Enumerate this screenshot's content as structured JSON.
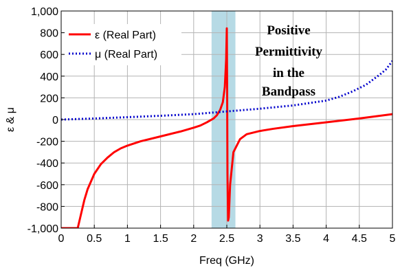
{
  "chart_data": {
    "type": "line",
    "title": "",
    "xlabel": "Freq (GHz)",
    "ylabel": "ε & μ",
    "xlim": [
      0,
      5
    ],
    "ylim": [
      -1000,
      1000
    ],
    "xticks": [
      0,
      0.5,
      1,
      1.5,
      2,
      2.5,
      3,
      3.5,
      4,
      4.5,
      5
    ],
    "xtick_labels": [
      "0",
      "0.5",
      "1",
      "1.5",
      "2",
      "2.5",
      "3",
      "3.5",
      "4",
      "4.5",
      "5"
    ],
    "yticks": [
      -1000,
      -800,
      -600,
      -400,
      -200,
      0,
      200,
      400,
      600,
      800,
      1000
    ],
    "ytick_labels": [
      "-1,000",
      "-800",
      "-600",
      "-400",
      "-200",
      "0",
      "200",
      "400",
      "600",
      "800",
      "1,000"
    ],
    "grid": true,
    "legend_position": "top-left",
    "highlight_band": {
      "x": [
        2.27,
        2.63
      ],
      "color": "#a9d4e0"
    },
    "annotation": [
      "Positive",
      "Permittivity",
      "in the",
      "Bandpass"
    ],
    "series": [
      {
        "name": "ε (Real Part)",
        "color": "#ff0000",
        "style": "solid",
        "points": [
          [
            0.0,
            -1000
          ],
          [
            0.0,
            -1000
          ],
          [
            0.25,
            -1000
          ],
          [
            0.3,
            -870
          ],
          [
            0.35,
            -740
          ],
          [
            0.4,
            -640
          ],
          [
            0.5,
            -500
          ],
          [
            0.6,
            -410
          ],
          [
            0.7,
            -350
          ],
          [
            0.8,
            -300
          ],
          [
            0.9,
            -265
          ],
          [
            1.0,
            -240
          ],
          [
            1.2,
            -200
          ],
          [
            1.4,
            -170
          ],
          [
            1.6,
            -140
          ],
          [
            1.8,
            -110
          ],
          [
            2.0,
            -75
          ],
          [
            2.1,
            -55
          ],
          [
            2.2,
            -25
          ],
          [
            2.3,
            10
          ],
          [
            2.35,
            40
          ],
          [
            2.4,
            90
          ],
          [
            2.44,
            160
          ],
          [
            2.47,
            300
          ],
          [
            2.49,
            550
          ],
          [
            2.5,
            840
          ],
          [
            2.505,
            300
          ],
          [
            2.51,
            -500
          ],
          [
            2.52,
            -930
          ],
          [
            2.53,
            -900
          ],
          [
            2.55,
            -600
          ],
          [
            2.6,
            -300
          ],
          [
            2.7,
            -180
          ],
          [
            2.8,
            -135
          ],
          [
            3.0,
            -105
          ],
          [
            3.2,
            -85
          ],
          [
            3.5,
            -60
          ],
          [
            4.0,
            -25
          ],
          [
            4.5,
            10
          ],
          [
            5.0,
            50
          ]
        ]
      },
      {
        "name": "μ (Real Part)",
        "color": "#0000cc",
        "style": "dotted",
        "points": [
          [
            0.0,
            0
          ],
          [
            0.5,
            10
          ],
          [
            1.0,
            22
          ],
          [
            1.5,
            35
          ],
          [
            2.0,
            50
          ],
          [
            2.5,
            75
          ],
          [
            3.0,
            100
          ],
          [
            3.5,
            130
          ],
          [
            4.0,
            175
          ],
          [
            4.2,
            210
          ],
          [
            4.4,
            260
          ],
          [
            4.6,
            320
          ],
          [
            4.8,
            410
          ],
          [
            4.9,
            460
          ],
          [
            5.0,
            540
          ]
        ]
      }
    ]
  }
}
